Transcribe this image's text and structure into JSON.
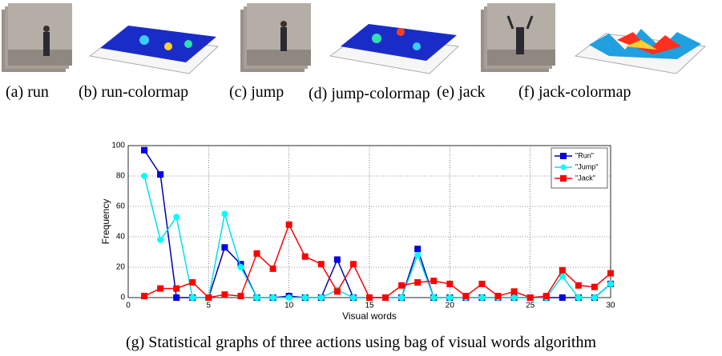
{
  "subfigures": [
    {
      "caption": "(a) run"
    },
    {
      "caption": "(b) run-colormap"
    },
    {
      "caption": "(c) jump"
    },
    {
      "caption": "(d) jump-colormap"
    },
    {
      "caption": "(e) jack"
    },
    {
      "caption": "(f) jack-colormap"
    }
  ],
  "chart_data": {
    "type": "line",
    "xlabel": "Visual words",
    "ylabel": "Frequency",
    "x": [
      1,
      2,
      3,
      4,
      5,
      6,
      7,
      8,
      9,
      10,
      11,
      12,
      13,
      14,
      15,
      16,
      17,
      18,
      19,
      20,
      21,
      22,
      23,
      24,
      25,
      26,
      27,
      28,
      29,
      30
    ],
    "series": [
      {
        "name": "\"Run\"",
        "color": "#0000ff",
        "line_color": "#0000b0",
        "marker": "square",
        "values": [
          97,
          81,
          0,
          0,
          0,
          33,
          22,
          0,
          0,
          1,
          0,
          0,
          25,
          0,
          0,
          0,
          0,
          32,
          0,
          0,
          0,
          0,
          0,
          0,
          0,
          0,
          0,
          0,
          0,
          9
        ]
      },
      {
        "name": "\"Jump\"",
        "color": "#00ffff",
        "line_color": "#00e0f0",
        "marker": "circle",
        "values": [
          80,
          38,
          53,
          0,
          0,
          55,
          20,
          0,
          0,
          0,
          0,
          0,
          5,
          0,
          0,
          0,
          0,
          28,
          0,
          0,
          0,
          0,
          0,
          0,
          0,
          0,
          14,
          0,
          0,
          9
        ]
      },
      {
        "name": "\"Jack\"",
        "color": "#ff0000",
        "line_color": "#ff0000",
        "marker": "square",
        "values": [
          1,
          6,
          6,
          10,
          0,
          2,
          1,
          29,
          19,
          48,
          27,
          22,
          4,
          22,
          0,
          0,
          8,
          10,
          11,
          9,
          1,
          9,
          1,
          4,
          0,
          1,
          18,
          8,
          7,
          16
        ]
      }
    ],
    "xlim": [
      0,
      30
    ],
    "ylim": [
      0,
      100
    ],
    "xticks": [
      0,
      5,
      10,
      15,
      20,
      25,
      30
    ],
    "yticks": [
      0,
      20,
      40,
      60,
      80,
      100
    ],
    "grid": true,
    "legend": "upper right"
  },
  "caption": "(g) Statistical graphs of three actions using bag of visual words algorithm"
}
